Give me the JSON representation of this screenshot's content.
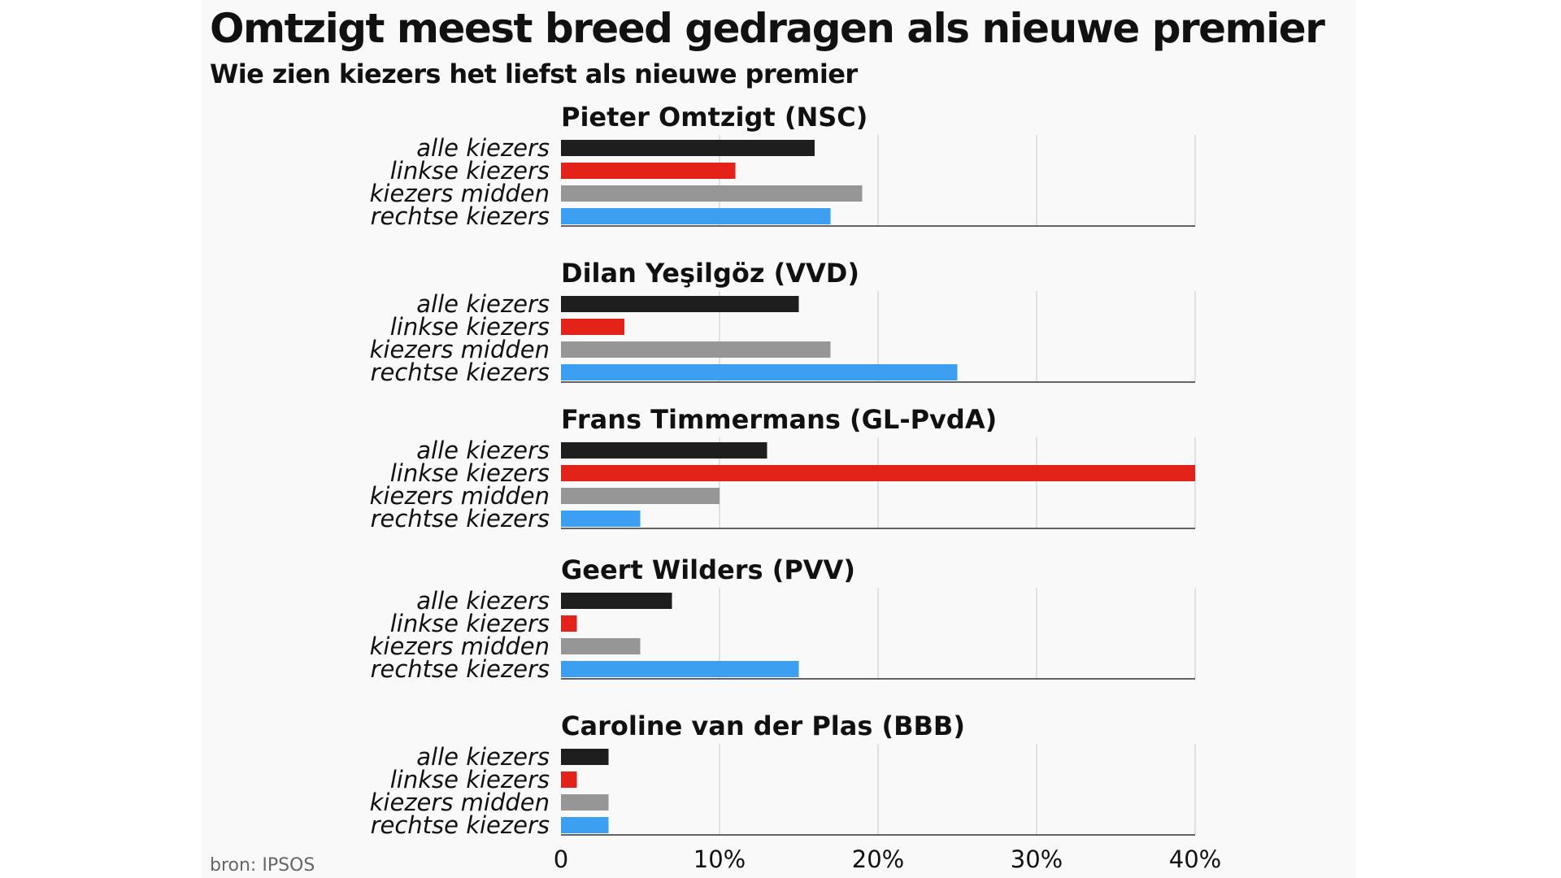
{
  "title": "Omtzigt meest breed gedragen als nieuwe premier",
  "subtitle": "Wie zien kiezers het liefst als nieuwe premier",
  "source": "bron: IPSOS",
  "colors": {
    "alle kiezers": "#1e1e1e",
    "linkse kiezers": "#e3231a",
    "kiezers midden": "#969696",
    "rechtse kiezers": "#3d9ff2",
    "gridline": "#c8c8c8",
    "baseline": "#333333"
  },
  "chart_data": {
    "type": "bar",
    "orientation": "horizontal",
    "categories": [
      "alle kiezers",
      "linkse kiezers",
      "kiezers midden",
      "rechtse kiezers"
    ],
    "xlim": [
      0,
      40
    ],
    "xticks": [
      0,
      10,
      20,
      30,
      40
    ],
    "xtick_labels": [
      "0",
      "10%",
      "20%",
      "30%",
      "40%"
    ],
    "grid": true,
    "panels": [
      {
        "title": "Pieter Omtzigt (NSC)",
        "values": [
          16,
          11,
          19,
          17
        ]
      },
      {
        "title": "Dilan Yeşilgöz (VVD)",
        "values": [
          15,
          4,
          17,
          25
        ]
      },
      {
        "title": "Frans Timmermans (GL-PvdA)",
        "values": [
          13,
          40,
          10,
          5
        ]
      },
      {
        "title": "Geert Wilders (PVV)",
        "values": [
          7,
          1,
          5,
          15
        ]
      },
      {
        "title": "Caroline van der Plas (BBB)",
        "values": [
          3,
          1,
          3,
          3
        ]
      }
    ]
  }
}
